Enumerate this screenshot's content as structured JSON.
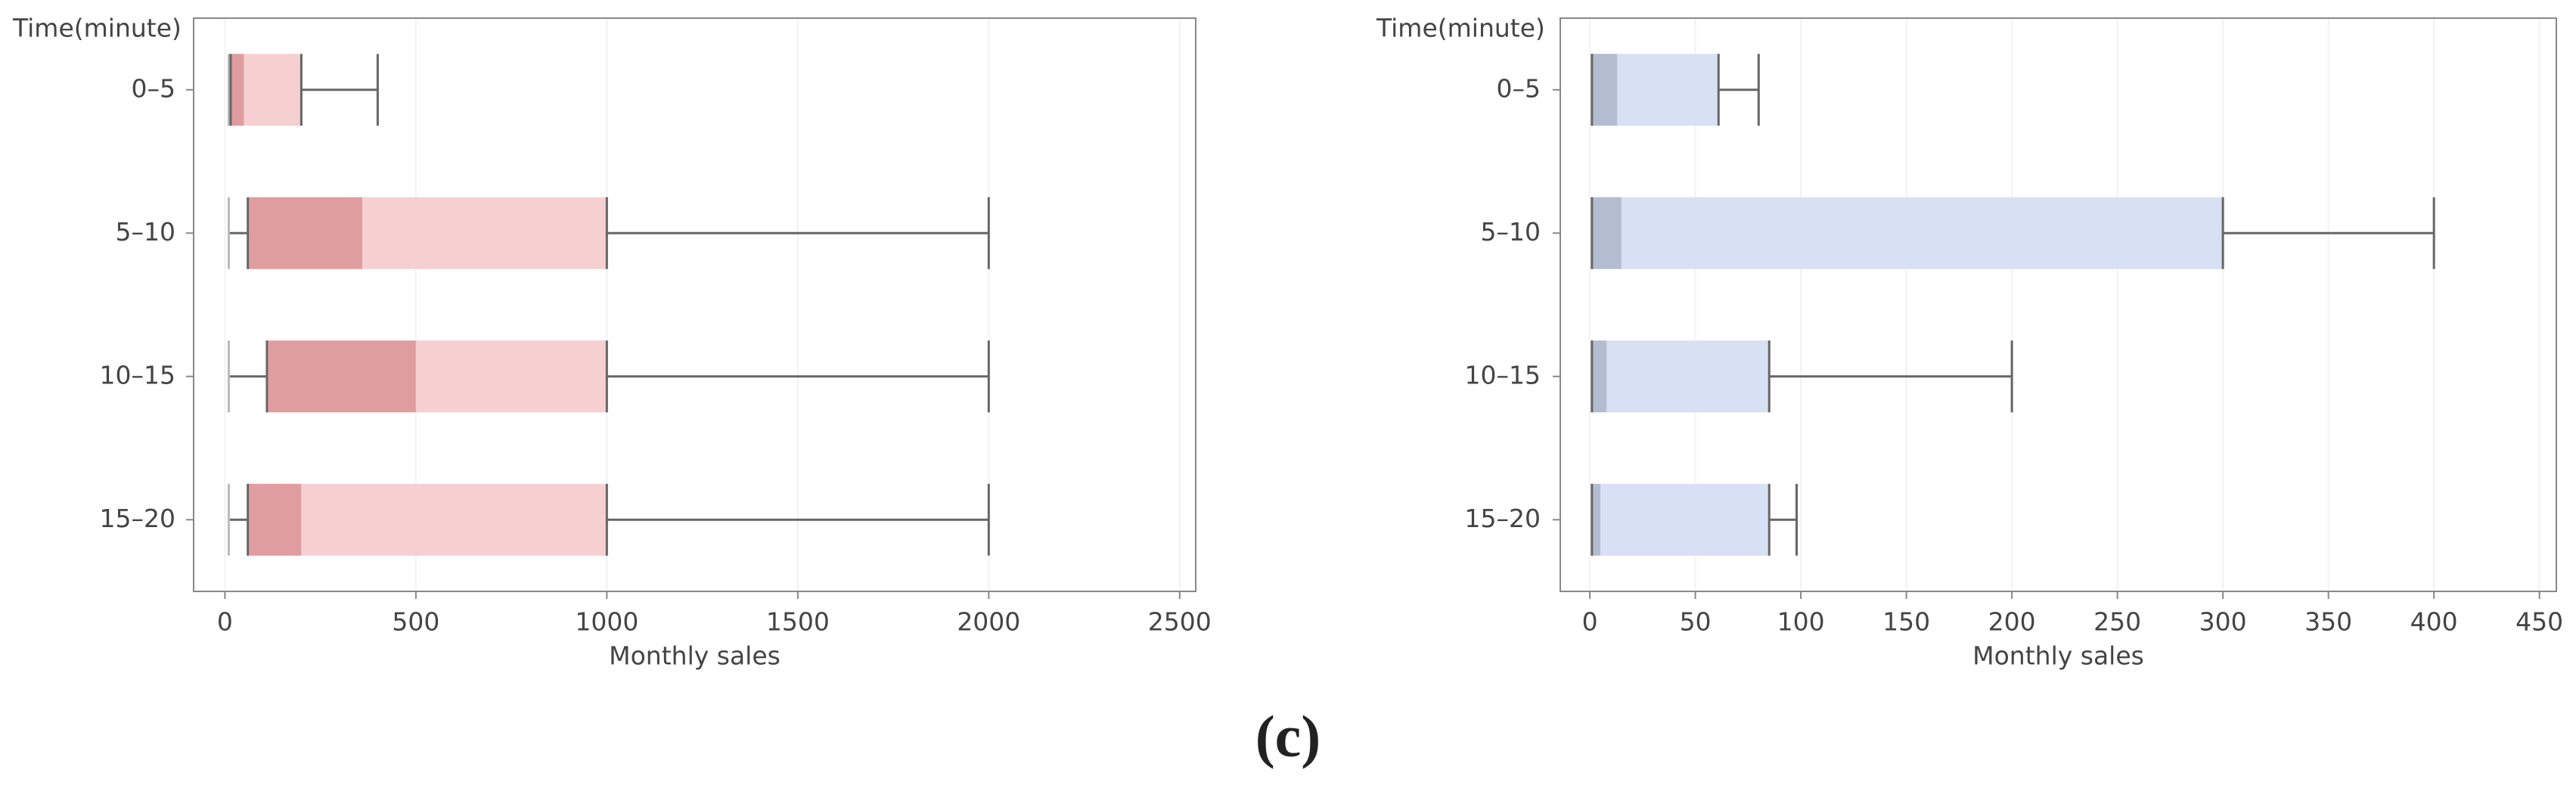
{
  "caption": "(c)",
  "chart_data": [
    {
      "type": "box",
      "y_label": "Time(minute)",
      "x_label": "Monthly sales",
      "categories": [
        "0–5",
        "5–10",
        "10–15",
        "15–20"
      ],
      "whislo": [
        10,
        10,
        10,
        10
      ],
      "q1": [
        15,
        60,
        110,
        60
      ],
      "med": [
        50,
        360,
        500,
        200
      ],
      "q3": [
        200,
        1000,
        1000,
        1000
      ],
      "whishi": [
        400,
        2000,
        2000,
        2000
      ],
      "lower_color": "#e09da0",
      "upper_color": "#f6cfd1",
      "xlim": [
        -82,
        2542
      ],
      "xticks": [
        0,
        500,
        1000,
        1500,
        2000,
        2500
      ],
      "grid": true
    },
    {
      "type": "box",
      "y_label": "Time(minute)",
      "x_label": "Monthly sales",
      "categories": [
        "0–5",
        "5–10",
        "10–15",
        "15–20"
      ],
      "whislo": [
        1,
        1,
        1,
        1
      ],
      "q1": [
        1,
        1,
        1,
        1
      ],
      "med": [
        13,
        15,
        8,
        5
      ],
      "q3": [
        61,
        300,
        85,
        85
      ],
      "whishi": [
        80,
        400,
        200,
        98
      ],
      "lower_color": "#b4bccf",
      "upper_color": "#d8e0f4",
      "xlim": [
        -14,
        458
      ],
      "xticks": [
        0,
        50,
        100,
        150,
        200,
        250,
        300,
        350,
        400,
        450
      ],
      "grid": true
    }
  ]
}
